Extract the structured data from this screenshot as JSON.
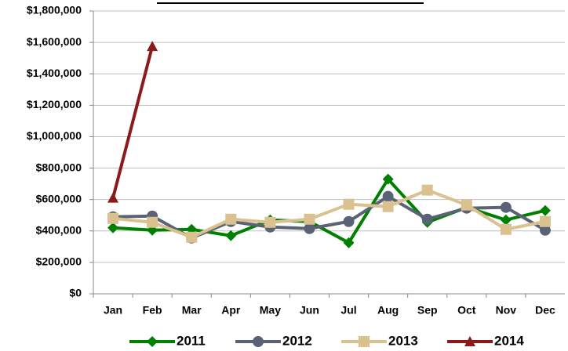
{
  "chart_data": {
    "type": "line",
    "categories": [
      "Jan",
      "Feb",
      "Mar",
      "Apr",
      "May",
      "Jun",
      "Jul",
      "Aug",
      "Sep",
      "Oct",
      "Nov",
      "Dec"
    ],
    "series": [
      {
        "name": "2011",
        "color": "#008000",
        "marker": "diamond",
        "values": [
          420000,
          405000,
          410000,
          370000,
          470000,
          460000,
          325000,
          730000,
          455000,
          550000,
          470000,
          530000
        ]
      },
      {
        "name": "2012",
        "color": "#5a6275",
        "marker": "circle",
        "values": [
          490000,
          495000,
          355000,
          460000,
          425000,
          415000,
          460000,
          620000,
          475000,
          545000,
          550000,
          405000
        ]
      },
      {
        "name": "2013",
        "color": "#d9c28f",
        "marker": "square",
        "values": [
          480000,
          455000,
          360000,
          475000,
          455000,
          475000,
          570000,
          555000,
          660000,
          565000,
          410000,
          460000
        ]
      },
      {
        "name": "2014",
        "color": "#8b1a1a",
        "marker": "triangle",
        "values": [
          610000,
          1575000,
          null,
          null,
          null,
          null,
          null,
          null,
          null,
          null,
          null,
          null
        ]
      }
    ],
    "ylim": [
      0,
      1800000
    ],
    "yticks": [
      {
        "value": 0,
        "label": "$0"
      },
      {
        "value": 200000,
        "label": "$200,000"
      },
      {
        "value": 400000,
        "label": "$400,000"
      },
      {
        "value": 600000,
        "label": "$600,000"
      },
      {
        "value": 800000,
        "label": "$800,000"
      },
      {
        "value": 1000000,
        "label": "$1,000,000"
      },
      {
        "value": 1200000,
        "label": "$1,200,000"
      },
      {
        "value": 1400000,
        "label": "$1,400,000"
      },
      {
        "value": 1600000,
        "label": "$1,600,000"
      },
      {
        "value": 1800000,
        "label": "$1,800,000"
      }
    ],
    "grid": true
  }
}
